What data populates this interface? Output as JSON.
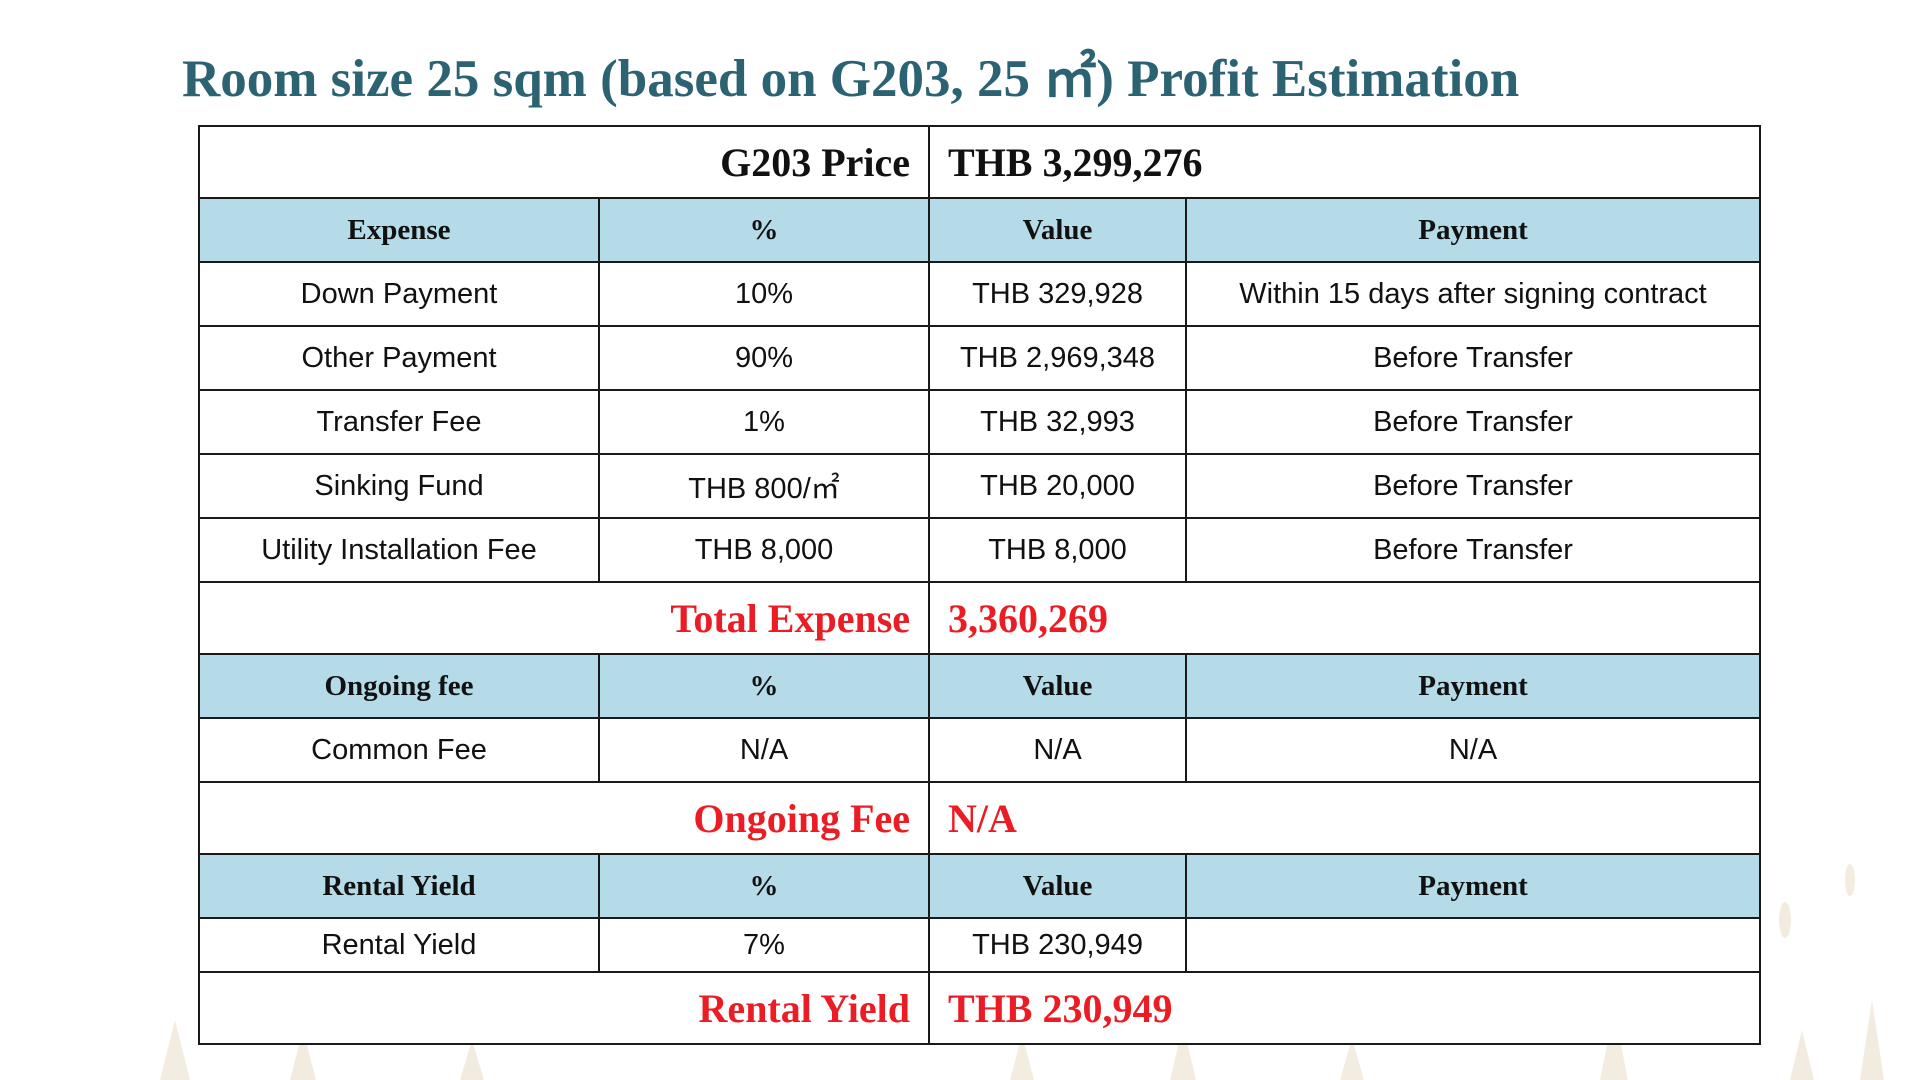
{
  "title": "Room size 25 sqm (based on G203, 25 ㎡) Profit Estimation",
  "price": {
    "label": "G203 Price",
    "value": "THB 3,299,276"
  },
  "expense": {
    "headers": [
      "Expense",
      "%",
      "Value",
      "Payment"
    ],
    "rows": [
      [
        "Down Payment",
        "10%",
        "THB 329,928",
        "Within 15 days after signing contract"
      ],
      [
        "Other Payment",
        "90%",
        "THB 2,969,348",
        "Before Transfer"
      ],
      [
        "Transfer Fee",
        "1%",
        "THB 32,993",
        "Before Transfer"
      ],
      [
        "Sinking Fund",
        "THB 800/㎡",
        "THB 20,000",
        "Before Transfer"
      ],
      [
        "Utility Installation Fee",
        "THB 8,000",
        "THB 8,000",
        "Before Transfer"
      ]
    ],
    "total_label": "Total Expense",
    "total_value": "3,360,269"
  },
  "ongoing": {
    "headers": [
      "Ongoing fee",
      "%",
      "Value",
      "Payment"
    ],
    "rows": [
      [
        "Common Fee",
        "N/A",
        "N/A",
        "N/A"
      ]
    ],
    "total_label": "Ongoing Fee",
    "total_value": "N/A"
  },
  "rental": {
    "headers": [
      "Rental Yield",
      "%",
      "Value",
      "Payment"
    ],
    "rows": [
      [
        "Rental Yield",
        "7%",
        "THB 230,949",
        ""
      ]
    ],
    "total_label": "Rental Yield",
    "total_value": "THB 230,949"
  },
  "colors": {
    "title": "#2c6372",
    "header_bg": "#b5dbe8",
    "total_red": "#ec1c24"
  }
}
